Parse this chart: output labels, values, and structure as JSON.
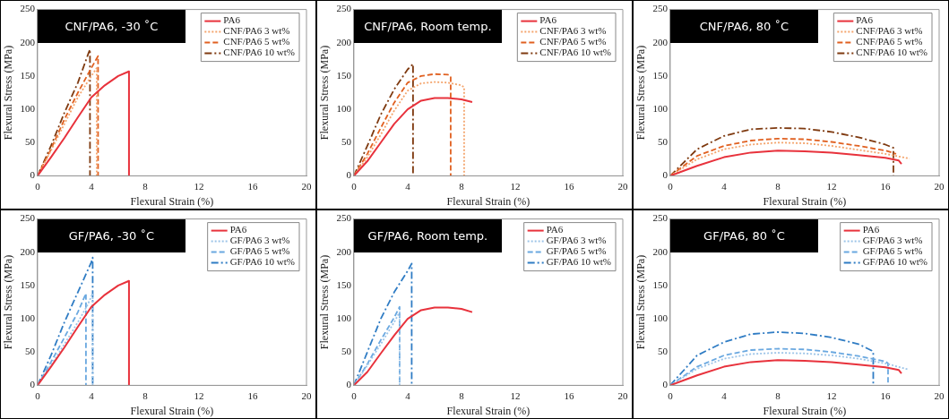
{
  "chart_data": [
    {
      "type": "line",
      "title": "CNF/PA6, -30 ˚C",
      "xlabel": "Flexural Strain (%)",
      "ylabel": "Flexural Stress (MPa)",
      "xlim": [
        0,
        20
      ],
      "ylim": [
        0,
        250
      ],
      "xticks": [
        0,
        4,
        8,
        12,
        16,
        20
      ],
      "yticks": [
        0,
        50,
        100,
        150,
        200,
        250
      ],
      "grid": false,
      "legend": "top right",
      "marker": "none",
      "series": [
        {
          "name": "PA6",
          "color": "#e8323c",
          "line_style": "solid",
          "x": [
            0,
            1,
            2,
            3,
            4,
            5,
            6,
            6.8,
            6.8
          ],
          "values": [
            0,
            28,
            57,
            88,
            118,
            136,
            150,
            157,
            0
          ]
        },
        {
          "name": "CNF/PA6 3 wt%",
          "color": "#f4a46c",
          "line_style": "dotted",
          "x": [
            0,
            1,
            2,
            3,
            4,
            4.4,
            4.4
          ],
          "values": [
            0,
            38,
            78,
            118,
            150,
            162,
            0
          ]
        },
        {
          "name": "CNF/PA6 5 wt%",
          "color": "#e06020",
          "line_style": "dashed",
          "x": [
            0,
            1,
            2,
            3,
            4,
            4.5,
            4.5
          ],
          "values": [
            0,
            40,
            85,
            125,
            162,
            180,
            0
          ]
        },
        {
          "name": "CNF/PA6 10 wt%",
          "color": "#7f3a10",
          "line_style": "dashdot",
          "x": [
            0,
            1,
            2,
            3,
            3.8,
            3.9,
            3.9
          ],
          "values": [
            0,
            45,
            95,
            140,
            185,
            190,
            0
          ]
        }
      ]
    },
    {
      "type": "line",
      "title": "CNF/PA6, Room temp.",
      "xlabel": "Flexural Strain (%)",
      "ylabel": "Flexural Stress (MPa)",
      "xlim": [
        0,
        20
      ],
      "ylim": [
        0,
        250
      ],
      "xticks": [
        0,
        4,
        8,
        12,
        16,
        20
      ],
      "yticks": [
        0,
        50,
        100,
        150,
        200,
        250
      ],
      "grid": false,
      "legend": "top right",
      "marker": "none",
      "series": [
        {
          "name": "PA6",
          "color": "#e8323c",
          "line_style": "solid",
          "x": [
            0,
            1,
            2,
            3,
            4,
            5,
            6,
            7,
            8,
            8.8
          ],
          "values": [
            0,
            22,
            50,
            78,
            100,
            113,
            117,
            117,
            115,
            111
          ]
        },
        {
          "name": "CNF/PA6 3 wt%",
          "color": "#f4a46c",
          "line_style": "dotted",
          "x": [
            0,
            1,
            2,
            3,
            4,
            5,
            6,
            7,
            8,
            8.2,
            8.2
          ],
          "values": [
            0,
            28,
            62,
            98,
            128,
            139,
            141,
            140,
            136,
            133,
            0
          ]
        },
        {
          "name": "CNF/PA6 5 wt%",
          "color": "#e06020",
          "line_style": "dashed",
          "x": [
            0,
            1,
            2,
            3,
            4,
            5,
            6,
            7,
            7.2,
            7.2
          ],
          "values": [
            0,
            33,
            72,
            110,
            140,
            150,
            153,
            152,
            150,
            0
          ]
        },
        {
          "name": "CNF/PA6 10 wt%",
          "color": "#7f3a10",
          "line_style": "dashdot",
          "x": [
            0,
            1,
            2,
            3,
            4,
            4.4,
            4.4
          ],
          "values": [
            0,
            45,
            92,
            130,
            160,
            168,
            0
          ]
        }
      ]
    },
    {
      "type": "line",
      "title": "CNF/PA6, 80 ˚C",
      "xlabel": "Flexural Strain (%)",
      "ylabel": "Flexural Stress (MPa)",
      "xlim": [
        0,
        20
      ],
      "ylim": [
        0,
        250
      ],
      "xticks": [
        0,
        4,
        8,
        12,
        16,
        20
      ],
      "yticks": [
        0,
        50,
        100,
        150,
        200,
        250
      ],
      "grid": false,
      "legend": "top right",
      "marker": "none",
      "series": [
        {
          "name": "PA6",
          "color": "#e8323c",
          "line_style": "solid",
          "x": [
            0,
            2,
            4,
            6,
            8,
            10,
            12,
            14,
            16,
            17,
            17.2
          ],
          "values": [
            0,
            15,
            28,
            35,
            38,
            37,
            35,
            31,
            27,
            23,
            18
          ]
        },
        {
          "name": "CNF/PA6 3 wt%",
          "color": "#f4a46c",
          "line_style": "dotted",
          "x": [
            0,
            2,
            4,
            6,
            8,
            10,
            12,
            14,
            16,
            17.8
          ],
          "values": [
            0,
            25,
            40,
            47,
            50,
            49,
            45,
            39,
            33,
            26
          ]
        },
        {
          "name": "CNF/PA6 5 wt%",
          "color": "#e06020",
          "line_style": "dashed",
          "x": [
            0,
            2,
            4,
            6,
            8,
            10,
            12,
            14,
            16,
            16.8
          ],
          "values": [
            0,
            30,
            45,
            53,
            56,
            55,
            51,
            45,
            38,
            33
          ]
        },
        {
          "name": "CNF/PA6 10 wt%",
          "color": "#7f3a10",
          "line_style": "dashdot",
          "x": [
            0,
            2,
            4,
            6,
            8,
            10,
            12,
            14,
            16,
            16.6,
            16.6
          ],
          "values": [
            0,
            40,
            60,
            70,
            72,
            71,
            66,
            58,
            47,
            42,
            0
          ]
        }
      ]
    },
    {
      "type": "line",
      "title": "GF/PA6, -30 ˚C",
      "xlabel": "Flexural Strain (%)",
      "ylabel": "Flexural Stress (MPa)",
      "xlim": [
        0,
        20
      ],
      "ylim": [
        0,
        250
      ],
      "xticks": [
        0,
        4,
        8,
        12,
        16,
        20
      ],
      "yticks": [
        0,
        50,
        100,
        150,
        200,
        250
      ],
      "grid": false,
      "legend": "top right",
      "marker": "none",
      "series": [
        {
          "name": "PA6",
          "color": "#e8323c",
          "line_style": "solid",
          "x": [
            0,
            1,
            2,
            3,
            4,
            5,
            6,
            6.8,
            6.8
          ],
          "values": [
            0,
            28,
            57,
            88,
            118,
            136,
            150,
            157,
            0
          ]
        },
        {
          "name": "GF/PA6 3 wt%",
          "color": "#9cc4e8",
          "line_style": "dotted",
          "x": [
            0,
            1,
            2,
            3,
            3.7,
            4.1,
            4.1
          ],
          "values": [
            0,
            30,
            62,
            95,
            120,
            138,
            0
          ]
        },
        {
          "name": "GF/PA6 5 wt%",
          "color": "#6aa8e0",
          "line_style": "dashed",
          "x": [
            0,
            1,
            2,
            3,
            3.6,
            3.6
          ],
          "values": [
            0,
            35,
            72,
            110,
            138,
            0
          ]
        },
        {
          "name": "GF/PA6 10 wt%",
          "color": "#2f7cc4",
          "line_style": "dashdot",
          "x": [
            0,
            1,
            2,
            3,
            4,
            4.1,
            4.1
          ],
          "values": [
            0,
            45,
            95,
            140,
            185,
            192,
            0
          ]
        }
      ]
    },
    {
      "type": "line",
      "title": "GF/PA6, Room temp.",
      "xlabel": "Flexural Strain (%)",
      "ylabel": "Flexural Stress (MPa)",
      "xlim": [
        0,
        20
      ],
      "ylim": [
        0,
        250
      ],
      "xticks": [
        0,
        4,
        8,
        12,
        16,
        20
      ],
      "yticks": [
        0,
        50,
        100,
        150,
        200,
        250
      ],
      "grid": false,
      "legend": "top right",
      "marker": "none",
      "series": [
        {
          "name": "PA6",
          "color": "#e8323c",
          "line_style": "solid",
          "x": [
            0,
            1,
            2,
            3,
            4,
            5,
            6,
            7,
            8,
            8.8
          ],
          "values": [
            0,
            20,
            48,
            75,
            100,
            113,
            117,
            117,
            115,
            110
          ]
        },
        {
          "name": "GF/PA6 3 wt%",
          "color": "#9cc4e8",
          "line_style": "dotted",
          "x": [
            0,
            1,
            2,
            3,
            3.4,
            3.4
          ],
          "values": [
            0,
            30,
            62,
            95,
            110,
            0
          ]
        },
        {
          "name": "GF/PA6 5 wt%",
          "color": "#6aa8e0",
          "line_style": "dashed",
          "x": [
            0,
            1,
            2,
            3,
            3.4,
            3.4
          ],
          "values": [
            0,
            32,
            68,
            102,
            118,
            0
          ]
        },
        {
          "name": "GF/PA6 10 wt%",
          "color": "#2f7cc4",
          "line_style": "dashdot",
          "x": [
            0,
            1,
            2,
            3,
            4,
            4.3,
            4.3
          ],
          "values": [
            0,
            50,
            100,
            140,
            172,
            183,
            0
          ]
        }
      ]
    },
    {
      "type": "line",
      "title": "GF/PA6, 80 ˚C",
      "xlabel": "Flexural Strain (%)",
      "ylabel": "Flexural Stress (MPa)",
      "xlim": [
        0,
        20
      ],
      "ylim": [
        0,
        250
      ],
      "xticks": [
        0,
        4,
        8,
        12,
        16,
        20
      ],
      "yticks": [
        0,
        50,
        100,
        150,
        200,
        250
      ],
      "grid": false,
      "legend": "top right",
      "marker": "none",
      "series": [
        {
          "name": "PA6",
          "color": "#e8323c",
          "line_style": "solid",
          "x": [
            0,
            2,
            4,
            6,
            8,
            10,
            12,
            14,
            16,
            17,
            17.2
          ],
          "values": [
            0,
            15,
            28,
            35,
            38,
            37,
            35,
            31,
            27,
            23,
            18
          ]
        },
        {
          "name": "GF/PA6 3 wt%",
          "color": "#9cc4e8",
          "line_style": "dotted",
          "x": [
            0,
            2,
            4,
            6,
            8,
            10,
            12,
            14,
            16,
            17.7
          ],
          "values": [
            0,
            25,
            40,
            47,
            49,
            48,
            45,
            40,
            33,
            24
          ]
        },
        {
          "name": "GF/PA6 5 wt%",
          "color": "#6aa8e0",
          "line_style": "dashed",
          "x": [
            0,
            2,
            4,
            6,
            8,
            10,
            12,
            14,
            16,
            16.2,
            16.2
          ],
          "values": [
            0,
            28,
            45,
            53,
            55,
            54,
            50,
            44,
            36,
            33,
            0
          ]
        },
        {
          "name": "GF/PA6 10 wt%",
          "color": "#2f7cc4",
          "line_style": "dashdot",
          "x": [
            0,
            2,
            4,
            6,
            8,
            10,
            12,
            14,
            15,
            15.1,
            15.1
          ],
          "values": [
            0,
            45,
            65,
            77,
            80,
            78,
            72,
            62,
            52,
            50,
            0
          ]
        }
      ]
    }
  ]
}
